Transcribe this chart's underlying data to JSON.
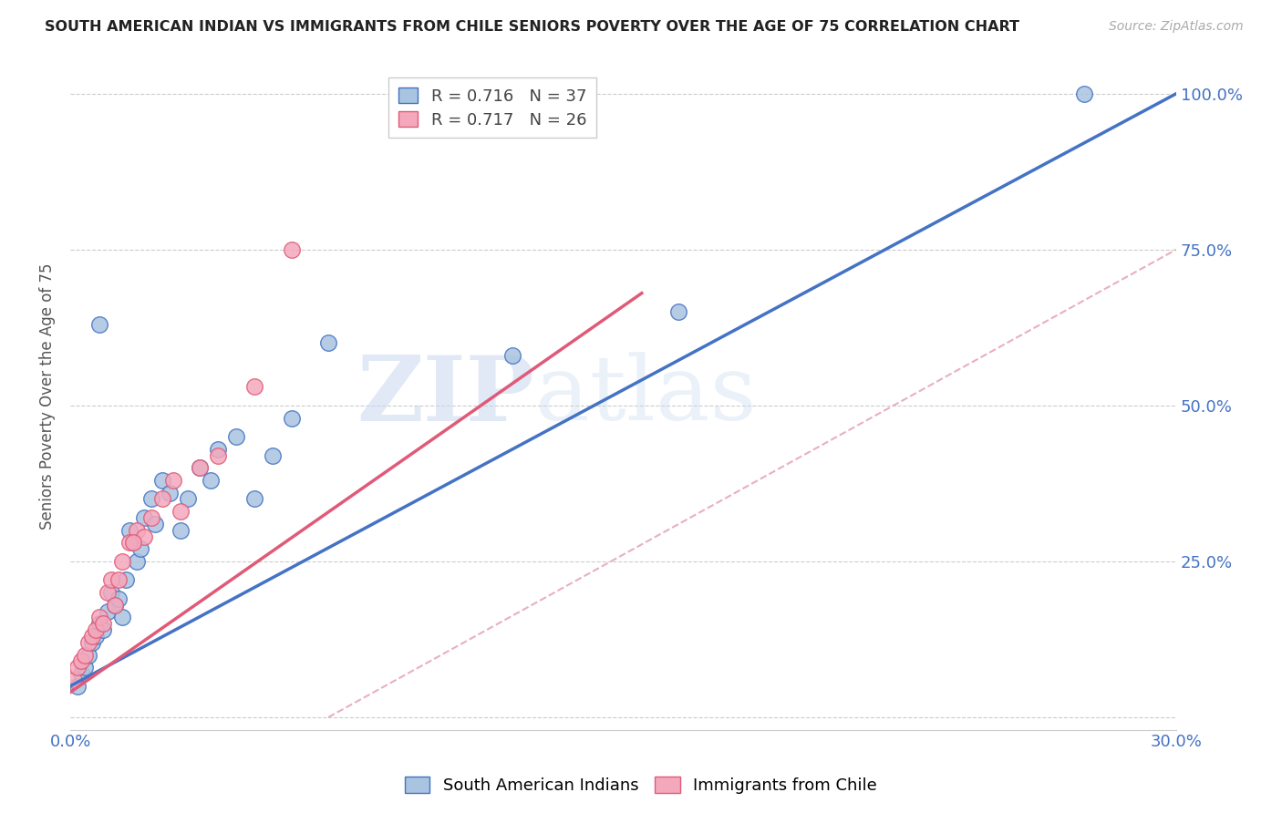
{
  "title": "SOUTH AMERICAN INDIAN VS IMMIGRANTS FROM CHILE SENIORS POVERTY OVER THE AGE OF 75 CORRELATION CHART",
  "source": "Source: ZipAtlas.com",
  "ylabel": "Seniors Poverty Over the Age of 75",
  "xlim": [
    0.0,
    0.3
  ],
  "ylim": [
    -0.02,
    1.05
  ],
  "xticks": [
    0.0,
    0.05,
    0.1,
    0.15,
    0.2,
    0.25,
    0.3
  ],
  "ytick_positions": [
    0.0,
    0.25,
    0.5,
    0.75,
    1.0
  ],
  "yticklabels_right": [
    "",
    "25.0%",
    "50.0%",
    "75.0%",
    "100.0%"
  ],
  "r1": 0.716,
  "n1": 37,
  "r2": 0.717,
  "n2": 26,
  "color1": "#a8c4e0",
  "color2": "#f4a8bc",
  "line1_color": "#4472c4",
  "line2_color": "#e05a78",
  "line1_x0": 0.0,
  "line1_y0": 0.05,
  "line1_x1": 0.3,
  "line1_y1": 1.0,
  "line2_x0": 0.0,
  "line2_y0": 0.04,
  "line2_x1": 0.155,
  "line2_y1": 0.68,
  "ref_line_x0": 0.07,
  "ref_line_y0": 0.0,
  "ref_line_x1": 0.3,
  "ref_line_y1": 0.75,
  "watermark_zip": "ZIP",
  "watermark_atlas": "atlas",
  "scatter1_x": [
    0.002,
    0.003,
    0.004,
    0.005,
    0.006,
    0.007,
    0.008,
    0.009,
    0.01,
    0.011,
    0.012,
    0.013,
    0.014,
    0.015,
    0.016,
    0.017,
    0.018,
    0.019,
    0.02,
    0.022,
    0.023,
    0.025,
    0.027,
    0.03,
    0.032,
    0.035,
    0.038,
    0.04,
    0.045,
    0.05,
    0.055,
    0.06,
    0.07,
    0.12,
    0.165,
    0.275,
    0.008
  ],
  "scatter1_y": [
    0.05,
    0.07,
    0.08,
    0.1,
    0.12,
    0.13,
    0.15,
    0.14,
    0.17,
    0.2,
    0.18,
    0.19,
    0.16,
    0.22,
    0.3,
    0.28,
    0.25,
    0.27,
    0.32,
    0.35,
    0.31,
    0.38,
    0.36,
    0.3,
    0.35,
    0.4,
    0.38,
    0.43,
    0.45,
    0.35,
    0.42,
    0.48,
    0.6,
    0.58,
    0.65,
    1.0,
    0.63
  ],
  "scatter2_x": [
    0.001,
    0.002,
    0.003,
    0.004,
    0.005,
    0.006,
    0.007,
    0.008,
    0.009,
    0.01,
    0.011,
    0.012,
    0.014,
    0.016,
    0.018,
    0.02,
    0.022,
    0.025,
    0.028,
    0.03,
    0.035,
    0.04,
    0.05,
    0.06,
    0.013,
    0.017
  ],
  "scatter2_y": [
    0.06,
    0.08,
    0.09,
    0.1,
    0.12,
    0.13,
    0.14,
    0.16,
    0.15,
    0.2,
    0.22,
    0.18,
    0.25,
    0.28,
    0.3,
    0.29,
    0.32,
    0.35,
    0.38,
    0.33,
    0.4,
    0.42,
    0.53,
    0.75,
    0.22,
    0.28
  ],
  "legend_label1": "South American Indians",
  "legend_label2": "Immigrants from Chile"
}
